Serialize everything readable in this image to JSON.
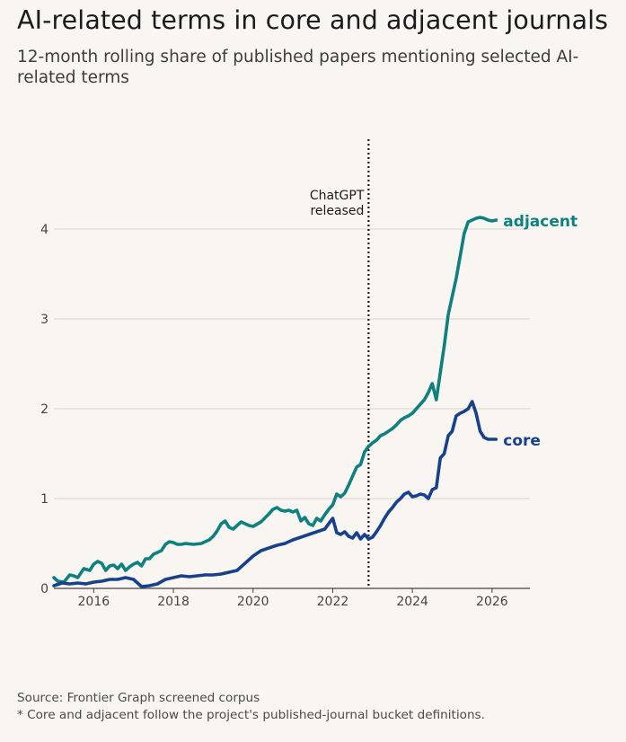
{
  "title": "AI-related terms in core and adjacent journals",
  "subtitle": "12-month rolling share of published papers mentioning selected AI-related terms",
  "footer": {
    "source": "Source: Frontier Graph screened corpus",
    "note": "* Core and adjacent follow the project's published-journal bucket definitions."
  },
  "colors": {
    "background": "#f9f6f1",
    "adjacent": "#0e8080",
    "core": "#17418c",
    "grid": "#d9d5cf",
    "axis": "#444444"
  },
  "chart_data": {
    "type": "line",
    "title": "AI-related terms in core and adjacent journals",
    "xlabel": "",
    "ylabel": "",
    "xlim": [
      2015.0,
      2026.95
    ],
    "ylim": [
      0,
      5
    ],
    "x_ticks": [
      2016,
      2018,
      2020,
      2022,
      2024,
      2026
    ],
    "y_ticks": [
      0,
      1,
      2,
      3,
      4
    ],
    "grid": "horizontal",
    "annotation": {
      "x": 2022.9,
      "lines": [
        "ChatGPT",
        "released"
      ],
      "style": "dotted vertical line"
    },
    "series": [
      {
        "name": "adjacent",
        "color": "#0e8080",
        "x": [
          2015.0,
          2015.1,
          2015.25,
          2015.4,
          2015.5,
          2015.6,
          2015.75,
          2015.9,
          2016.0,
          2016.1,
          2016.2,
          2016.3,
          2016.4,
          2016.5,
          2016.6,
          2016.7,
          2016.8,
          2016.9,
          2017.0,
          2017.1,
          2017.2,
          2017.3,
          2017.4,
          2017.5,
          2017.6,
          2017.7,
          2017.8,
          2017.9,
          2018.0,
          2018.1,
          2018.2,
          2018.3,
          2018.5,
          2018.7,
          2018.8,
          2018.9,
          2019.0,
          2019.1,
          2019.2,
          2019.3,
          2019.4,
          2019.5,
          2019.6,
          2019.7,
          2019.8,
          2019.9,
          2020.0,
          2020.2,
          2020.4,
          2020.5,
          2020.6,
          2020.7,
          2020.8,
          2020.9,
          2021.0,
          2021.1,
          2021.2,
          2021.3,
          2021.4,
          2021.5,
          2021.6,
          2021.7,
          2021.8,
          2021.9,
          2022.0,
          2022.1,
          2022.2,
          2022.3,
          2022.4,
          2022.5,
          2022.6,
          2022.7,
          2022.8,
          2022.9,
          2023.0,
          2023.1,
          2023.2,
          2023.3,
          2023.4,
          2023.5,
          2023.6,
          2023.7,
          2023.8,
          2023.9,
          2024.0,
          2024.1,
          2024.2,
          2024.3,
          2024.4,
          2024.5,
          2024.6,
          2024.7,
          2024.8,
          2024.9,
          2025.0,
          2025.1,
          2025.2,
          2025.3,
          2025.4,
          2025.5,
          2025.6,
          2025.7,
          2025.8,
          2025.9,
          2026.0,
          2026.1
        ],
        "values": [
          0.12,
          0.08,
          0.07,
          0.15,
          0.14,
          0.12,
          0.22,
          0.2,
          0.27,
          0.3,
          0.28,
          0.2,
          0.25,
          0.26,
          0.22,
          0.27,
          0.2,
          0.24,
          0.27,
          0.29,
          0.25,
          0.33,
          0.33,
          0.38,
          0.4,
          0.42,
          0.49,
          0.52,
          0.51,
          0.49,
          0.49,
          0.5,
          0.49,
          0.5,
          0.52,
          0.54,
          0.58,
          0.64,
          0.72,
          0.75,
          0.68,
          0.66,
          0.7,
          0.74,
          0.72,
          0.7,
          0.69,
          0.74,
          0.83,
          0.88,
          0.9,
          0.87,
          0.86,
          0.87,
          0.85,
          0.87,
          0.75,
          0.79,
          0.72,
          0.7,
          0.78,
          0.75,
          0.82,
          0.88,
          0.93,
          1.05,
          1.02,
          1.06,
          1.15,
          1.25,
          1.35,
          1.38,
          1.52,
          1.58,
          1.62,
          1.65,
          1.7,
          1.72,
          1.75,
          1.78,
          1.82,
          1.87,
          1.9,
          1.92,
          1.95,
          2.0,
          2.05,
          2.1,
          2.18,
          2.28,
          2.1,
          2.4,
          2.7,
          3.05,
          3.25,
          3.45,
          3.7,
          3.95,
          4.08,
          4.1,
          4.12,
          4.13,
          4.12,
          4.1,
          4.09,
          4.1
        ],
        "end_label": "adjacent"
      },
      {
        "name": "core",
        "color": "#17418c",
        "x": [
          2015.0,
          2015.2,
          2015.4,
          2015.6,
          2015.8,
          2016.0,
          2016.2,
          2016.4,
          2016.6,
          2016.8,
          2017.0,
          2017.2,
          2017.4,
          2017.6,
          2017.8,
          2018.0,
          2018.2,
          2018.4,
          2018.6,
          2018.8,
          2019.0,
          2019.2,
          2019.4,
          2019.6,
          2019.8,
          2020.0,
          2020.2,
          2020.4,
          2020.6,
          2020.8,
          2021.0,
          2021.2,
          2021.4,
          2021.6,
          2021.8,
          2021.9,
          2022.0,
          2022.1,
          2022.2,
          2022.3,
          2022.4,
          2022.5,
          2022.6,
          2022.7,
          2022.8,
          2022.9,
          2023.0,
          2023.1,
          2023.2,
          2023.3,
          2023.4,
          2023.5,
          2023.6,
          2023.7,
          2023.8,
          2023.9,
          2024.0,
          2024.1,
          2024.2,
          2024.3,
          2024.4,
          2024.5,
          2024.6,
          2024.7,
          2024.8,
          2024.9,
          2025.0,
          2025.1,
          2025.2,
          2025.3,
          2025.4,
          2025.5,
          2025.6,
          2025.7,
          2025.8,
          2025.9,
          2026.0,
          2026.1
        ],
        "values": [
          0.03,
          0.06,
          0.05,
          0.06,
          0.05,
          0.07,
          0.08,
          0.1,
          0.1,
          0.12,
          0.1,
          0.02,
          0.03,
          0.05,
          0.1,
          0.12,
          0.14,
          0.13,
          0.14,
          0.15,
          0.15,
          0.16,
          0.18,
          0.2,
          0.28,
          0.36,
          0.42,
          0.45,
          0.48,
          0.5,
          0.54,
          0.57,
          0.6,
          0.63,
          0.66,
          0.72,
          0.78,
          0.62,
          0.6,
          0.63,
          0.58,
          0.56,
          0.62,
          0.55,
          0.6,
          0.55,
          0.57,
          0.63,
          0.7,
          0.78,
          0.85,
          0.9,
          0.96,
          1.0,
          1.05,
          1.07,
          1.02,
          1.03,
          1.05,
          1.04,
          1.0,
          1.1,
          1.12,
          1.45,
          1.5,
          1.7,
          1.75,
          1.92,
          1.95,
          1.97,
          2.0,
          2.08,
          1.95,
          1.75,
          1.68,
          1.66,
          1.66,
          1.66
        ],
        "end_label": "core"
      }
    ]
  }
}
